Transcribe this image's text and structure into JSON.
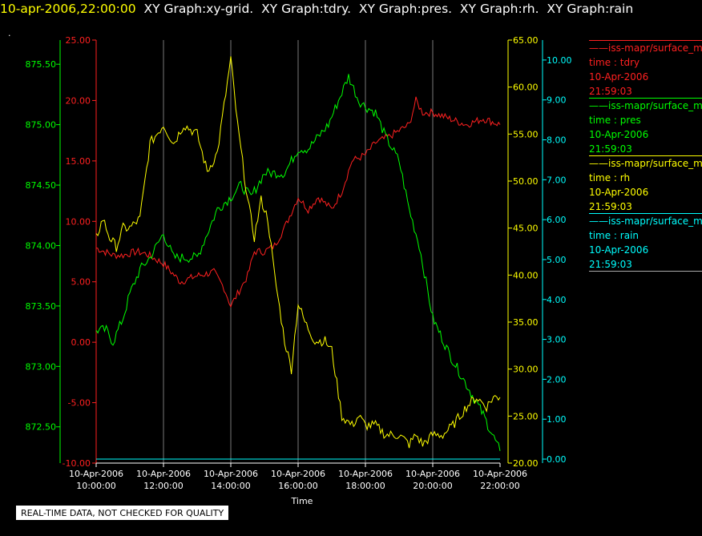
{
  "header": {
    "time": "10-apr-2006,22:00:00",
    "graphs": "XY Graph:xy-grid.  XY Graph:tdry.  XY Graph:pres.  XY Graph:rh.  XY Graph:rain"
  },
  "dot": ".",
  "qc_note": "REAL-TIME DATA, NOT CHECKED FOR QUALITY",
  "colors": {
    "tdry": "#ff2020",
    "pres": "#00ff00",
    "rh": "#ffff00",
    "rain": "#00ffff",
    "grid": "#999999"
  },
  "legend": [
    {
      "header": "iss-mapr/surface_m",
      "var": "time : tdry",
      "date": "10-Apr-2006",
      "time": "21:59:03",
      "color": "#ff2020"
    },
    {
      "header": "iss-mapr/surface_m",
      "var": "time : pres",
      "date": "10-Apr-2006",
      "time": "21:59:03",
      "color": "#00ff00"
    },
    {
      "header": "iss-mapr/surface_m",
      "var": "time : rh",
      "date": "10-Apr-2006",
      "time": "21:59:03",
      "color": "#ffff00"
    },
    {
      "header": "iss-mapr/surface_m",
      "var": "time : rain",
      "date": "10-Apr-2006",
      "time": "21:59:03",
      "color": "#00ffff"
    }
  ],
  "chart_data": {
    "type": "line",
    "xlabel": "Time",
    "grid": true,
    "x_ticks": [
      {
        "date": "10-Apr-2006",
        "time": "10:00:00",
        "hour": 10
      },
      {
        "date": "10-Apr-2006",
        "time": "12:00:00",
        "hour": 12
      },
      {
        "date": "10-Apr-2006",
        "time": "14:00:00",
        "hour": 14
      },
      {
        "date": "10-Apr-2006",
        "time": "16:00:00",
        "hour": 16
      },
      {
        "date": "10-Apr-2006",
        "time": "18:00:00",
        "hour": 18
      },
      {
        "date": "10-Apr-2006",
        "time": "20:00:00",
        "hour": 20
      },
      {
        "date": "10-Apr-2006",
        "time": "22:00:00",
        "hour": 22
      }
    ],
    "axes": {
      "pres": {
        "range": [
          872.2,
          875.7
        ],
        "ticks": [
          "872.50",
          "873.00",
          "873.50",
          "874.00",
          "874.50",
          "875.00",
          "875.50"
        ]
      },
      "tdry": {
        "range": [
          -10,
          25
        ],
        "ticks": [
          "-10.00",
          "-5.00",
          "0.00",
          "5.00",
          "10.00",
          "15.00",
          "20.00",
          "25.00"
        ]
      },
      "rh": {
        "range": [
          20,
          65
        ],
        "ticks": [
          "20.00",
          "25.00",
          "30.00",
          "35.00",
          "40.00",
          "45.00",
          "50.00",
          "55.00",
          "60.00",
          "65.00"
        ]
      },
      "rain": {
        "range": [
          -0.1,
          10.5
        ],
        "ticks": [
          "0.00",
          "1.00",
          "2.00",
          "3.00",
          "4.00",
          "5.00",
          "6.00",
          "7.00",
          "8.00",
          "9.00",
          "10.00"
        ]
      }
    },
    "series": [
      {
        "name": "tdry",
        "color": "#ff2020",
        "x": [
          10,
          10.5,
          10.8,
          11.2,
          11.5,
          12,
          12.5,
          13,
          13.5,
          13.8,
          14,
          14.2,
          14.5,
          14.7,
          15,
          15.3,
          15.6,
          16,
          16.3,
          16.6,
          17,
          17.3,
          17.6,
          18,
          18.3,
          18.7,
          19,
          19.3,
          19.5,
          19.7,
          20,
          20.5,
          21,
          21.5,
          22
        ],
        "values": [
          7.8,
          7.2,
          7.2,
          7.5,
          7.3,
          6.5,
          5.0,
          5.5,
          5.8,
          4.5,
          3.0,
          4.0,
          5.5,
          7.5,
          7.5,
          8.0,
          9.5,
          12.0,
          11.0,
          12.0,
          11.0,
          12.5,
          15.0,
          15.5,
          16.5,
          17.0,
          17.5,
          18.0,
          20.0,
          19.0,
          19.0,
          18.5,
          18.0,
          18.5,
          18.0
        ]
      },
      {
        "name": "pres",
        "color": "#00ff00",
        "x": [
          10,
          10.3,
          10.5,
          10.8,
          11,
          11.3,
          11.6,
          12,
          12.3,
          12.6,
          13,
          13.3,
          13.6,
          14,
          14.3,
          14.6,
          15,
          15.3,
          15.6,
          16,
          16.3,
          16.6,
          16.9,
          17.2,
          17.5,
          17.8,
          18,
          18.3,
          18.6,
          19,
          19.3,
          19.6,
          20,
          20.5,
          21,
          21.5,
          22
        ],
        "values": [
          873.3,
          873.3,
          873.2,
          873.4,
          873.6,
          873.8,
          873.9,
          874.1,
          873.9,
          873.9,
          873.9,
          874.1,
          874.3,
          874.4,
          874.5,
          874.4,
          874.6,
          874.6,
          874.6,
          874.8,
          874.8,
          874.9,
          875.0,
          875.2,
          875.4,
          875.2,
          875.15,
          875.1,
          874.9,
          874.7,
          874.3,
          874.0,
          873.4,
          873.1,
          872.85,
          872.6,
          872.3
        ]
      },
      {
        "name": "rh",
        "color": "#ffff00",
        "x": [
          10,
          10.2,
          10.4,
          10.6,
          10.8,
          11,
          11.3,
          11.6,
          12,
          12.3,
          12.6,
          13,
          13.3,
          13.6,
          13.8,
          14,
          14.2,
          14.5,
          14.7,
          14.9,
          15.1,
          15.3,
          15.6,
          15.8,
          16,
          16.2,
          16.5,
          16.8,
          17,
          17.3,
          17.6,
          17.8,
          18,
          18.3,
          18.6,
          19,
          19.3,
          19.5,
          19.7,
          20,
          20.3,
          20.6,
          21,
          21.3,
          21.6,
          21.8,
          22
        ],
        "values": [
          44,
          46,
          44,
          43,
          45,
          45,
          46,
          54,
          56,
          54,
          56,
          55,
          51,
          53,
          58,
          63,
          56,
          48,
          44,
          48,
          46,
          40,
          33,
          30,
          37,
          35,
          33,
          33,
          32,
          25,
          24,
          25,
          24,
          24,
          23,
          23,
          22,
          23,
          22,
          23,
          23,
          24,
          26,
          27,
          26,
          27,
          27
        ]
      },
      {
        "name": "rain",
        "color": "#00ffff",
        "x": [
          10,
          22
        ],
        "values": [
          0,
          0
        ]
      }
    ]
  }
}
